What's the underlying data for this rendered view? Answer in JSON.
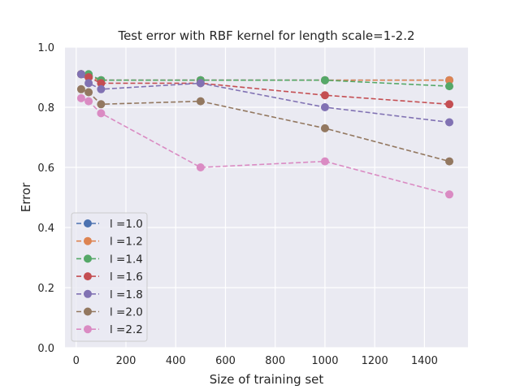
{
  "chart_data": {
    "type": "line",
    "title": "Test error with RBF kernel for length scale=1-2.2",
    "xlabel": "Size of training set",
    "ylabel": "Error",
    "xlim": [
      -45,
      1575
    ],
    "ylim": [
      0.0,
      1.0
    ],
    "xticks": [
      0,
      200,
      400,
      600,
      800,
      1000,
      1200,
      1400
    ],
    "yticks": [
      0.0,
      0.2,
      0.4,
      0.6,
      0.8,
      1.0
    ],
    "grid": true,
    "legend_position": "lower-left",
    "line_style": "dashed",
    "marker": "circle",
    "x": [
      20,
      50,
      100,
      500,
      1000,
      1500
    ],
    "series": [
      {
        "name": "l =1.0",
        "color": "#4c72b0",
        "values": [
          0.91,
          0.9,
          0.89,
          0.89,
          0.89,
          0.89
        ]
      },
      {
        "name": "l =1.2",
        "color": "#dd8452",
        "values": [
          0.91,
          0.9,
          0.89,
          0.89,
          0.89,
          0.89
        ]
      },
      {
        "name": "l =1.4",
        "color": "#55a868",
        "values": [
          0.91,
          0.91,
          0.89,
          0.89,
          0.89,
          0.87
        ]
      },
      {
        "name": "l =1.6",
        "color": "#c44e52",
        "values": [
          0.91,
          0.9,
          0.88,
          0.88,
          0.84,
          0.81
        ]
      },
      {
        "name": "l =1.8",
        "color": "#8172b3",
        "values": [
          0.91,
          0.88,
          0.86,
          0.88,
          0.8,
          0.75
        ]
      },
      {
        "name": "l =2.0",
        "color": "#937860",
        "values": [
          0.86,
          0.85,
          0.81,
          0.82,
          0.73,
          0.62
        ]
      },
      {
        "name": "l =2.2",
        "color": "#da8bc3",
        "values": [
          0.83,
          0.82,
          0.78,
          0.6,
          0.62,
          0.51
        ]
      }
    ]
  }
}
